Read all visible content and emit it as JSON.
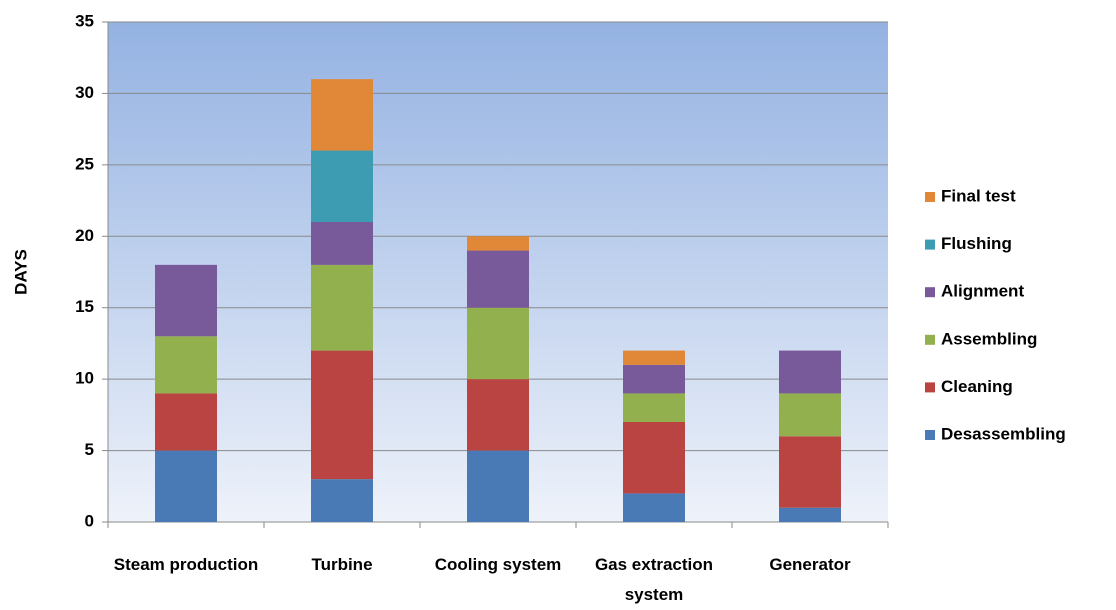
{
  "chart_data": {
    "type": "stacked_bar",
    "y_label": "DAYS",
    "categories": [
      "Steam production",
      "Turbine",
      "Cooling system",
      "Gas extraction system",
      "Generator"
    ],
    "series": [
      {
        "name": "Desassembling",
        "color": "#4a7ab5",
        "values": [
          5,
          3,
          5,
          2,
          1
        ]
      },
      {
        "name": "Cleaning",
        "color": "#b94441",
        "values": [
          4,
          9,
          5,
          5,
          5
        ]
      },
      {
        "name": "Assembling",
        "color": "#93b04f",
        "values": [
          4,
          6,
          5,
          2,
          3
        ]
      },
      {
        "name": "Alignment",
        "color": "#78599a",
        "values": [
          5,
          3,
          4,
          2,
          3
        ]
      },
      {
        "name": "Flushing",
        "color": "#3d9bb2",
        "values": [
          0,
          5,
          0,
          0,
          0
        ]
      },
      {
        "name": "Final test",
        "color": "#e08838",
        "values": [
          0,
          5,
          1,
          1,
          0
        ]
      }
    ],
    "ylim": [
      0,
      35
    ],
    "yticks": [
      0,
      5,
      10,
      15,
      20,
      25,
      30,
      35
    ],
    "grid": true,
    "legend": "right"
  }
}
